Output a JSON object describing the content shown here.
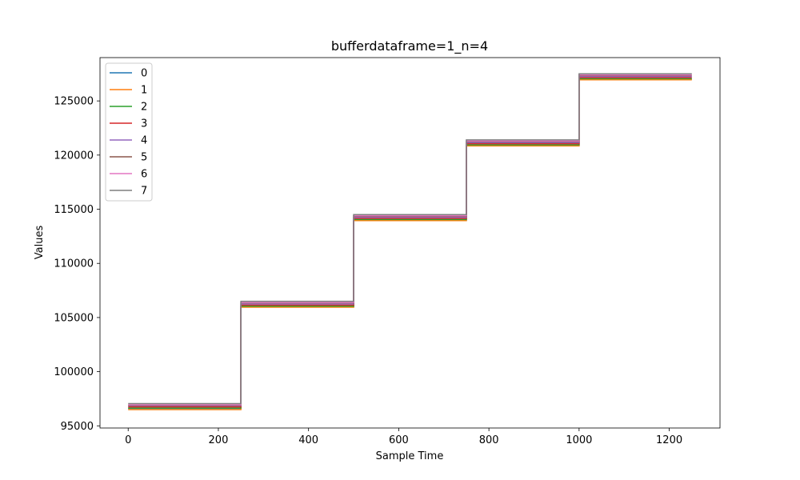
{
  "chart_data": {
    "type": "line",
    "title": "bufferdataframe=1_n=4",
    "xlabel": "Sample Time",
    "ylabel": "Values",
    "xlim": [
      -62.5,
      1312.5
    ],
    "ylim": [
      94800,
      129000
    ],
    "xticks": [
      0,
      200,
      400,
      600,
      800,
      1000,
      1200
    ],
    "yticks": [
      95000,
      100000,
      105000,
      110000,
      115000,
      120000,
      125000
    ],
    "step_x": [
      0,
      250,
      250,
      500,
      500,
      750,
      750,
      1000,
      1000,
      1250
    ],
    "legend_position": "upper-left",
    "grid": false,
    "series": [
      {
        "name": "0",
        "color": "#1f77b4",
        "y": [
          96600,
          96600,
          106000,
          106000,
          114000,
          114000,
          120900,
          120900,
          127000,
          127000
        ]
      },
      {
        "name": "1",
        "color": "#ff7f0e",
        "y": [
          96500,
          96500,
          105950,
          105950,
          113950,
          113950,
          120850,
          120850,
          126950,
          126950
        ]
      },
      {
        "name": "2",
        "color": "#2ca02c",
        "y": [
          96650,
          96650,
          106050,
          106050,
          114050,
          114050,
          120950,
          120950,
          127050,
          127050
        ]
      },
      {
        "name": "3",
        "color": "#d62728",
        "y": [
          96750,
          96750,
          106150,
          106150,
          114150,
          114150,
          121050,
          121050,
          127150,
          127150
        ]
      },
      {
        "name": "4",
        "color": "#9467bd",
        "y": [
          96850,
          96850,
          106250,
          106250,
          114250,
          114250,
          121150,
          121150,
          127250,
          127250
        ]
      },
      {
        "name": "5",
        "color": "#8c564b",
        "y": [
          96900,
          96900,
          106350,
          106350,
          114350,
          114350,
          121250,
          121250,
          127350,
          127350
        ]
      },
      {
        "name": "6",
        "color": "#e377c2",
        "y": [
          96950,
          96950,
          106400,
          106400,
          114400,
          114400,
          121300,
          121300,
          127400,
          127400
        ]
      },
      {
        "name": "7",
        "color": "#7f7f7f",
        "y": [
          97050,
          97050,
          106500,
          106500,
          114500,
          114500,
          121400,
          121400,
          127500,
          127500
        ]
      }
    ]
  }
}
